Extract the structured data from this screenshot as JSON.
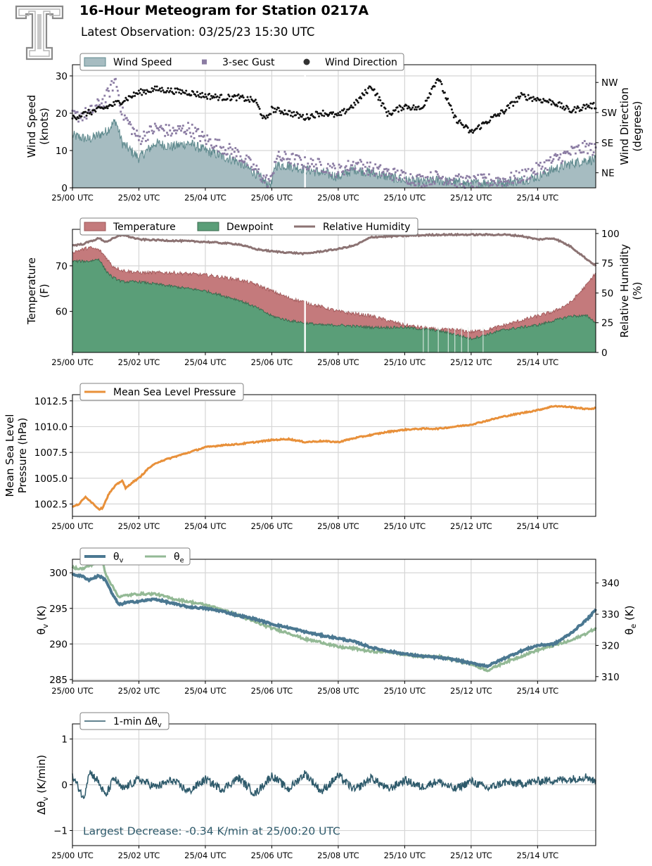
{
  "header": {
    "title": "16-Hour Meteogram for Station 0217A",
    "subtitle": "Latest Observation: 03/25/23 15:30 UTC"
  },
  "x_axis": {
    "unit": "hours since 25/00 UTC",
    "range": [
      0,
      15.75
    ],
    "ticks": [
      0,
      2,
      4,
      6,
      8,
      10,
      12,
      14
    ],
    "tick_labels": [
      "25/00 UTC",
      "25/02 UTC",
      "25/04 UTC",
      "25/06 UTC",
      "25/08 UTC",
      "25/10 UTC",
      "25/12 UTC",
      "25/14 UTC"
    ]
  },
  "colors": {
    "wind_speed_fill": "#a6bcc1",
    "wind_speed_line": "#5f8a8e",
    "gust": "#8b7ca3",
    "direction": "#111111",
    "temperature": "#c47a7c",
    "dewpoint": "#5a9e78",
    "dewpoint_line": "#3b6b4f",
    "rh": "#8c7373",
    "pressure": "#e8903a",
    "theta_v": "#4b7891",
    "theta_e": "#93b995",
    "delta_theta": "#2e5a6b",
    "annotation": "#2e5a6b"
  },
  "chart_data": [
    {
      "type": "area",
      "id": "wind",
      "xlabel": "",
      "ylabel": "Wind Speed\n(knots)",
      "ylabel_right": "Wind Direction\n(degrees)",
      "ylim": [
        0,
        33
      ],
      "yticks": [
        0,
        10,
        20,
        30
      ],
      "right_ylim": [
        0,
        368
      ],
      "right_ticks": [
        45,
        135,
        225,
        315
      ],
      "right_tick_labels": [
        "NE",
        "SE",
        "SW",
        "NW"
      ],
      "legend": {
        "position": "top-left",
        "entries": [
          "Wind Speed",
          "3-sec Gust",
          "Wind Direction"
        ]
      },
      "series": [
        {
          "name": "Wind Speed",
          "kind": "area",
          "x": [
            0,
            0.5,
            1,
            1.3,
            1.5,
            2,
            2.5,
            3,
            3.5,
            4,
            4.5,
            5,
            5.5,
            5.8,
            6,
            6.1,
            6.5,
            7,
            7.5,
            8,
            8.5,
            9,
            9.5,
            10,
            10.5,
            11,
            11.5,
            12,
            12.5,
            13,
            13.5,
            14,
            14.5,
            15,
            15.5,
            15.75
          ],
          "values": [
            14,
            13,
            15,
            18,
            12,
            8,
            12,
            11,
            12,
            10,
            8.5,
            7,
            4,
            1.5,
            1,
            6,
            6,
            5,
            4,
            3,
            5,
            4,
            3,
            2,
            1.5,
            2,
            1.5,
            1,
            1.5,
            1.5,
            2,
            3,
            5,
            6.5,
            7.5,
            7.5
          ]
        },
        {
          "name": "3-sec Gust",
          "kind": "scatter",
          "x": [
            0,
            0.5,
            1,
            1.3,
            1.5,
            2,
            2.5,
            3,
            3.5,
            4,
            4.5,
            5,
            5.5,
            5.8,
            6,
            6.1,
            6.5,
            7,
            7.5,
            8,
            8.5,
            9,
            9.5,
            10,
            10.5,
            11,
            11.5,
            12,
            12.5,
            13,
            13.5,
            14,
            14.5,
            15,
            15.5,
            15.75
          ],
          "values": [
            19,
            20,
            24,
            29,
            20,
            13,
            16,
            15,
            16,
            13,
            11,
            9,
            5,
            2,
            2,
            8,
            8,
            6.5,
            6,
            4.5,
            6.5,
            5,
            4,
            3,
            2,
            3,
            2,
            1.5,
            2,
            2,
            3,
            5,
            7.5,
            9.5,
            11,
            10
          ]
        },
        {
          "name": "Wind Direction",
          "kind": "scatter",
          "axis": "right",
          "x": [
            0,
            0.5,
            1,
            1.5,
            2,
            2.5,
            3,
            3.5,
            4,
            4.5,
            5,
            5.5,
            5.8,
            6,
            6.5,
            7,
            7.5,
            8,
            8.5,
            9,
            9.5,
            10,
            10.5,
            11,
            11.5,
            12,
            12.5,
            13,
            13.5,
            14,
            14.5,
            15,
            15.5,
            15.75
          ],
          "values": [
            210,
            225,
            240,
            260,
            285,
            295,
            290,
            285,
            275,
            270,
            270,
            260,
            200,
            235,
            225,
            210,
            225,
            215,
            250,
            305,
            220,
            245,
            235,
            330,
            210,
            165,
            200,
            230,
            275,
            265,
            255,
            230,
            245,
            245
          ]
        }
      ]
    },
    {
      "type": "area",
      "id": "thermo",
      "xlabel": "",
      "ylabel": "Temperature\n(F)",
      "ylabel_right": "Relative Humidity\n(%)",
      "ylim": [
        51,
        78
      ],
      "yticks": [
        60,
        70
      ],
      "right_ylim": [
        0,
        103.5
      ],
      "right_ticks": [
        0,
        25,
        50,
        75,
        100
      ],
      "legend": {
        "position": "top-left",
        "entries": [
          "Temperature",
          "Dewpoint",
          "Relative Humidity"
        ]
      },
      "series": [
        {
          "name": "Temperature",
          "kind": "area",
          "x": [
            0,
            0.5,
            0.8,
            1,
            1.2,
            1.5,
            2,
            3,
            4,
            5,
            5.5,
            6,
            6.5,
            7,
            7.5,
            8,
            9,
            10,
            11,
            11.5,
            12,
            12.5,
            13,
            13.5,
            14,
            14.5,
            15,
            15.5,
            15.75
          ],
          "values": [
            73,
            74,
            73.5,
            72,
            70,
            69,
            68.5,
            68.5,
            68,
            67,
            66,
            64.5,
            63,
            62,
            61,
            60,
            59,
            57,
            56,
            56,
            55.5,
            56,
            57,
            58,
            59,
            60,
            62,
            66,
            68.5
          ]
        },
        {
          "name": "Dewpoint",
          "kind": "area",
          "x": [
            0,
            0.5,
            0.8,
            1,
            1.2,
            1.5,
            2,
            3,
            4,
            5,
            5.5,
            6,
            6.5,
            7,
            7.5,
            8,
            9,
            10,
            11,
            11.5,
            12,
            12.5,
            13,
            13.5,
            14,
            14.5,
            15,
            15.5,
            15.75
          ],
          "values": [
            71,
            71,
            71.5,
            69,
            67.5,
            66.5,
            66.5,
            65.5,
            64.5,
            62.5,
            61,
            59,
            58,
            57.5,
            57,
            57,
            56.5,
            56.5,
            55.8,
            55,
            54,
            55,
            56,
            56.5,
            57,
            58,
            59,
            59,
            57.5
          ]
        },
        {
          "name": "Relative Humidity",
          "kind": "line",
          "axis": "right",
          "x": [
            0,
            0.3,
            0.8,
            1,
            1.5,
            2,
            3,
            4,
            5,
            5.5,
            6,
            6.5,
            7,
            7.5,
            8,
            8.5,
            9,
            10,
            11,
            12,
            13,
            13.5,
            14,
            14.5,
            15,
            15.5,
            15.75
          ],
          "values": [
            90,
            91,
            96,
            93,
            99,
            95,
            94,
            93,
            91,
            87,
            85,
            84,
            83,
            85,
            87,
            90,
            97,
            98,
            99,
            99,
            99,
            98,
            95,
            96,
            89,
            78,
            73
          ]
        }
      ]
    },
    {
      "type": "line",
      "id": "pressure",
      "xlabel": "",
      "ylabel": "Mean Sea Level\nPressure (hPa)",
      "ylim": [
        1001.3,
        1013.1
      ],
      "yticks": [
        1002.5,
        1005.0,
        1007.5,
        1010.0,
        1012.5
      ],
      "ytick_labels": [
        "1002.5",
        "1005.0",
        "1007.5",
        "1010.0",
        "1012.5"
      ],
      "legend": {
        "position": "top-left",
        "entries": [
          "Mean Sea Level Pressure"
        ]
      },
      "series": [
        {
          "name": "Mean Sea Level Pressure",
          "x": [
            0,
            0.2,
            0.4,
            0.6,
            0.8,
            0.9,
            1.1,
            1.3,
            1.5,
            1.6,
            1.8,
            2,
            2.3,
            2.6,
            3,
            3.5,
            4,
            4.5,
            5,
            5.5,
            6,
            6.5,
            7,
            7.5,
            8,
            8.5,
            9,
            9.5,
            10,
            10.5,
            11,
            11.5,
            12,
            12.5,
            13,
            13.5,
            14,
            14.5,
            15,
            15.5,
            15.75
          ],
          "values": [
            1002.2,
            1002.5,
            1003.2,
            1002.6,
            1002.0,
            1002.1,
            1003.5,
            1004.3,
            1004.8,
            1004.0,
            1004.6,
            1005.0,
            1006.0,
            1006.6,
            1007.0,
            1007.5,
            1008.0,
            1008.2,
            1008.3,
            1008.5,
            1008.7,
            1008.8,
            1008.5,
            1008.6,
            1008.5,
            1008.9,
            1009.2,
            1009.5,
            1009.7,
            1009.8,
            1009.8,
            1010.0,
            1010.2,
            1010.6,
            1011.0,
            1011.3,
            1011.6,
            1012.0,
            1011.9,
            1011.7,
            1011.8
          ]
        }
      ]
    },
    {
      "type": "line",
      "id": "theta",
      "xlabel": "",
      "ylabel": "θv (K)",
      "ylabel_right": "θe (K)",
      "ylim": [
        284.8,
        301.9
      ],
      "yticks": [
        285,
        290,
        295,
        300
      ],
      "right_ylim": [
        308.6,
        347.6
      ],
      "right_ticks": [
        310,
        320,
        330,
        340
      ],
      "legend": {
        "position": "top-left",
        "entries": [
          "θv",
          "θe"
        ]
      },
      "series": [
        {
          "name": "θv",
          "x": [
            0,
            0.3,
            0.5,
            0.8,
            1,
            1.2,
            1.4,
            1.6,
            2,
            2.5,
            3,
            3.5,
            4,
            4.5,
            5,
            5.5,
            6,
            6.5,
            7,
            7.5,
            8,
            8.5,
            9,
            9.5,
            10,
            10.5,
            11,
            11.5,
            12,
            12.5,
            13,
            13.5,
            14,
            14.5,
            15,
            15.5,
            15.75
          ],
          "values": [
            299.8,
            299.5,
            299.0,
            299.6,
            299.0,
            297.0,
            295.5,
            295.8,
            296.0,
            296.3,
            295.7,
            295.2,
            295.0,
            294.6,
            294.0,
            293.5,
            292.8,
            292.3,
            291.7,
            291.2,
            290.8,
            290.3,
            289.5,
            289.0,
            288.6,
            288.3,
            288.1,
            287.8,
            287.3,
            286.9,
            288.0,
            289.0,
            289.8,
            290.0,
            291.5,
            293.5,
            294.8
          ]
        },
        {
          "name": "θe",
          "axis": "right",
          "x": [
            0,
            0.3,
            0.6,
            0.9,
            1.0,
            1.2,
            1.4,
            1.6,
            2,
            2.5,
            3,
            3.5,
            4,
            4.5,
            5,
            5.5,
            6,
            6.5,
            7,
            7.5,
            8,
            8.5,
            9,
            9.5,
            10,
            10.5,
            11,
            11.5,
            12,
            12.5,
            13,
            13.5,
            14,
            14.5,
            15,
            15.5,
            15.75
          ],
          "values": [
            345.0,
            344.5,
            346.0,
            347.0,
            343.0,
            339.0,
            335.5,
            336.0,
            336.5,
            336.5,
            335.0,
            334.0,
            333.0,
            331.5,
            329.5,
            327.5,
            325.5,
            324.0,
            322.0,
            321.0,
            319.5,
            319.0,
            318.0,
            318.0,
            317.0,
            316.5,
            316.5,
            315.5,
            314.0,
            312.0,
            314.5,
            316.5,
            318.5,
            320.0,
            321.5,
            324.0,
            325.5
          ]
        }
      ]
    },
    {
      "type": "line",
      "id": "delta",
      "xlabel": "",
      "ylabel": "Δθv (K/min)",
      "ylim": [
        -1.33,
        1.33
      ],
      "yticks": [
        -1,
        0,
        1
      ],
      "ytick_labels": [
        "−1",
        "0",
        "1"
      ],
      "legend": {
        "position": "top-left",
        "entries": [
          "1-min Δθv"
        ]
      },
      "annotation": "Largest Decrease: -0.34 K/min at 25/00:20 UTC",
      "series": [
        {
          "name": "1-min Δθv",
          "x": [
            0,
            0.25,
            0.33,
            0.5,
            0.75,
            1,
            1.25,
            1.5,
            2,
            2.5,
            3,
            3.5,
            4,
            4.5,
            5,
            5.5,
            6,
            6.5,
            7,
            7.5,
            8,
            8.5,
            9,
            9.5,
            10,
            10.5,
            11,
            11.5,
            12,
            12.5,
            13,
            13.5,
            14,
            14.5,
            15,
            15.5,
            15.75
          ],
          "values": [
            0.18,
            -0.15,
            -0.34,
            0.3,
            0.1,
            -0.25,
            0.15,
            -0.1,
            0.12,
            -0.05,
            0.1,
            -0.15,
            0.12,
            -0.1,
            0.15,
            -0.2,
            0.2,
            -0.1,
            0.25,
            -0.15,
            0.2,
            -0.12,
            0.15,
            -0.1,
            0.1,
            -0.05,
            0.08,
            -0.1,
            0.08,
            -0.08,
            0.05,
            0.02,
            0.08,
            0.1,
            0.12,
            0.18,
            0.05
          ]
        }
      ]
    }
  ]
}
